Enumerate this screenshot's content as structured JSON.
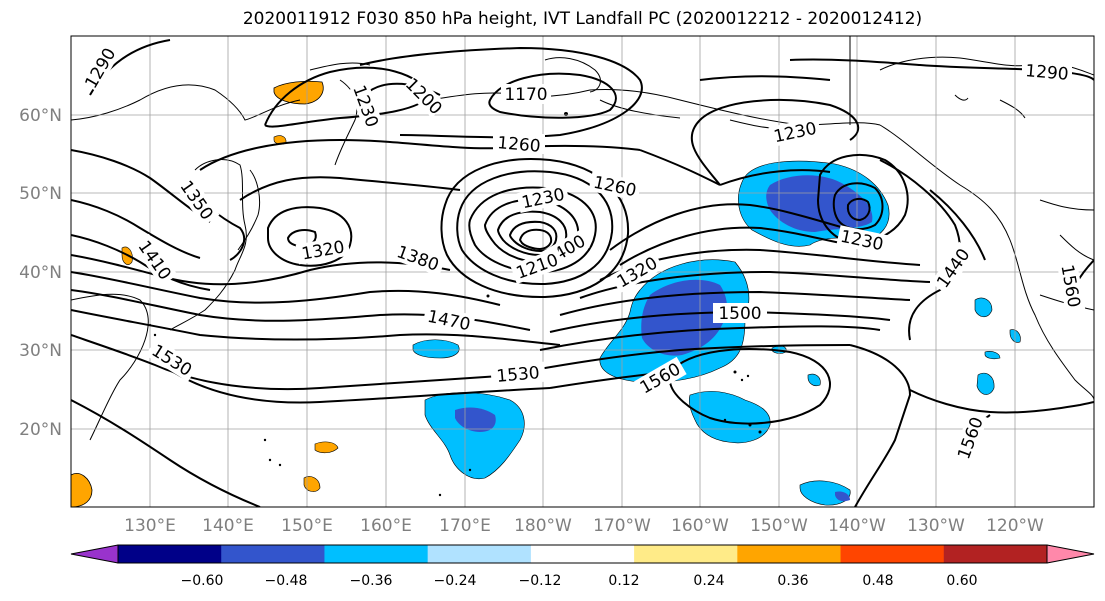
{
  "title": "2020011912 F030 850 hPa height, IVT Landfall PC (2020012212 - 2020012412)",
  "map": {
    "lat_labels": [
      "20°N",
      "30°N",
      "40°N",
      "50°N",
      "60°N"
    ],
    "lon_labels": [
      "130°E",
      "140°E",
      "150°E",
      "160°E",
      "170°E",
      "180°W",
      "170°W",
      "160°W",
      "150°W",
      "140°W",
      "130°W",
      "120°W"
    ],
    "contour_labels": [
      "1290",
      "1230",
      "1200",
      "1170",
      "1260",
      "1230",
      "1260",
      "1290",
      "1230",
      "1350",
      "1320",
      "1410",
      "1380",
      "1230",
      "1400",
      "1210",
      "1320",
      "1500",
      "1470",
      "1530",
      "1530",
      "1560",
      "1440",
      "1560",
      "1560",
      "1230",
      "1260"
    ]
  },
  "colorbar": {
    "tick_labels": [
      "−0.60",
      "−0.48",
      "−0.36",
      "−0.24",
      "−0.12",
      "0.12",
      "0.24",
      "0.36",
      "0.48",
      "0.60"
    ],
    "colors": [
      "#9933cc",
      "#000088",
      "#3355cc",
      "#00bfff",
      "#b0e2ff",
      "#ffffff",
      "#ffeb88",
      "#ffa500",
      "#ff4500",
      "#b22222",
      "#ff88aa"
    ]
  }
}
